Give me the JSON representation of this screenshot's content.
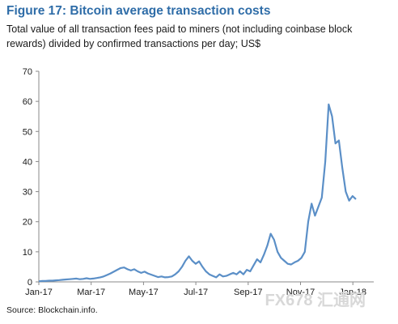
{
  "chart_data": {
    "type": "line",
    "title": "Figure 17: Bitcoin average transaction costs",
    "subtitle": "Total value of all transaction fees paid to miners (not including coinbase block rewards) divided by confirmed transactions per day; US$",
    "source": "Source: Blockchain.info.",
    "watermark": "FX678 汇通网",
    "ylim": [
      0,
      70
    ],
    "yticks": [
      0,
      10,
      20,
      30,
      40,
      50,
      60,
      70
    ],
    "xticks": [
      "Jan-17",
      "Mar-17",
      "May-17",
      "Jul-17",
      "Sep-17",
      "Nov-17",
      "Jan-18"
    ],
    "grid": false,
    "series_color": "#5b8fc7",
    "series": [
      {
        "values": [
          0.2,
          0.3,
          0.3,
          0.4,
          0.4,
          0.5,
          0.6,
          0.7,
          0.8,
          0.9,
          1.0,
          1.1,
          0.9,
          1.0,
          1.2,
          1.0,
          1.1,
          1.3,
          1.5,
          1.8,
          2.3,
          2.8,
          3.4,
          4.0,
          4.6,
          4.8,
          4.2,
          3.8,
          4.2,
          3.5,
          3.0,
          3.4,
          2.8,
          2.4,
          2.0,
          1.6,
          1.8,
          1.5,
          1.6,
          1.8,
          2.5,
          3.5,
          5.0,
          7.0,
          8.5,
          7.0,
          6.0,
          6.8,
          5.0,
          3.5,
          2.5,
          2.0,
          1.5,
          2.5,
          1.8,
          2.0,
          2.5,
          3.0,
          2.5,
          3.5,
          2.5,
          4.0,
          3.5,
          5.5,
          7.5,
          6.5,
          9.0,
          12.0,
          16.0,
          14.0,
          10.0,
          8.0,
          7.0,
          6.0,
          5.8,
          6.5,
          7.0,
          8.0,
          10.0,
          20.0,
          26.0,
          22.0,
          25.0,
          28.0,
          40.0,
          59.0,
          55.0,
          46.0,
          47.0,
          38.0,
          30.0,
          27.0,
          28.5,
          27.5
        ]
      }
    ]
  }
}
